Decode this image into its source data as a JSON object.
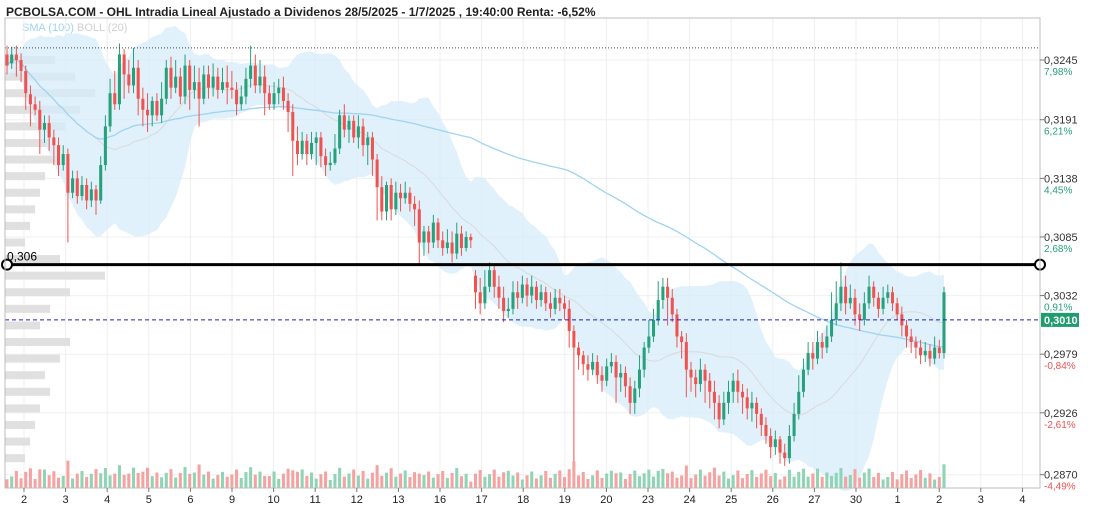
{
  "header": {
    "title": "PCBOLSA.COM - OHL Intradia Lineal Ajustado a Dividenos 28/5/2025 - 1/7/2025 , 19:40:00 Renta: -6,52%",
    "legend_sma": "SMA (100)",
    "legend_boll": "BOLL (20)"
  },
  "colors": {
    "up": "#26a17b",
    "down": "#ef5350",
    "sma": "#9fd3f2",
    "band_fill": "#d6ecfa",
    "mid_band": "#d9d9d9",
    "volume_profile": "#e0e0e0",
    "current_price": "#1c1ccc",
    "level_line": "#000000",
    "pct_pos": "#26a17b",
    "pct_neg": "#ef5350"
  },
  "chart_data": {
    "type": "candlestick",
    "y_range": [
      0.2858,
      0.3283
    ],
    "y_ticks": [
      {
        "value": 0.3245,
        "label": "0,3245",
        "pct": "7,98%",
        "sign": "pos"
      },
      {
        "value": 0.3191,
        "label": "0,3191",
        "pct": "6,21%",
        "sign": "pos"
      },
      {
        "value": 0.3138,
        "label": "0,3138",
        "pct": "4,45%",
        "sign": "pos"
      },
      {
        "value": 0.3085,
        "label": "0,3085",
        "pct": "2,68%",
        "sign": "pos"
      },
      {
        "value": 0.3032,
        "label": "0,3032",
        "pct": "0,91%",
        "sign": "pos"
      },
      {
        "value": 0.2979,
        "label": "0,2979",
        "pct": "-0,84%",
        "sign": "neg"
      },
      {
        "value": 0.2926,
        "label": "0,2926",
        "pct": "-2,61%",
        "sign": "neg"
      },
      {
        "value": 0.287,
        "label": "0,2870",
        "pct": "-4,49%",
        "sign": "neg"
      }
    ],
    "x_labels": [
      "2",
      "3",
      "4",
      "5",
      "6",
      "9",
      "10",
      "11",
      "12",
      "13",
      "16",
      "17",
      "18",
      "19",
      "20",
      "23",
      "24",
      "25",
      "26",
      "27",
      "30",
      "1",
      "2",
      "3",
      "4"
    ],
    "level_line": {
      "value": 0.306,
      "label": "0,306"
    },
    "current_price": {
      "value": 0.301,
      "label": "0,3010"
    },
    "dotted_level": 0.3256,
    "candles": [
      [
        0.325,
        0.324,
        0.3258,
        0.3232
      ],
      [
        0.3242,
        0.325,
        0.3257,
        0.3237
      ],
      [
        0.325,
        0.3245,
        0.3258,
        0.323
      ],
      [
        0.3245,
        0.3235,
        0.3251,
        0.3225
      ],
      [
        0.3235,
        0.3215,
        0.324,
        0.32
      ],
      [
        0.3214,
        0.3205,
        0.3222,
        0.3185
      ],
      [
        0.3205,
        0.32,
        0.3212,
        0.3195
      ],
      [
        0.32,
        0.3182,
        0.3208,
        0.316
      ],
      [
        0.3182,
        0.3188,
        0.3195,
        0.317
      ],
      [
        0.3188,
        0.3175,
        0.3195,
        0.3163
      ],
      [
        0.3175,
        0.3168,
        0.3182,
        0.315
      ],
      [
        0.3168,
        0.315,
        0.3175,
        0.314
      ],
      [
        0.315,
        0.316,
        0.3168,
        0.3145
      ],
      [
        0.316,
        0.3125,
        0.3165,
        0.308
      ],
      [
        0.3125,
        0.3138,
        0.3145,
        0.312
      ],
      [
        0.3138,
        0.3122,
        0.3145,
        0.3115
      ],
      [
        0.3122,
        0.3132,
        0.314,
        0.3118
      ],
      [
        0.3132,
        0.3118,
        0.3138,
        0.311
      ],
      [
        0.3118,
        0.3128,
        0.3135,
        0.3112
      ],
      [
        0.3128,
        0.3118,
        0.3132,
        0.3105
      ],
      [
        0.3118,
        0.315,
        0.3158,
        0.3115
      ],
      [
        0.315,
        0.3185,
        0.3195,
        0.3145
      ],
      [
        0.3185,
        0.3215,
        0.3228,
        0.318
      ],
      [
        0.3215,
        0.3205,
        0.3235,
        0.32
      ],
      [
        0.3205,
        0.325,
        0.326,
        0.32
      ],
      [
        0.325,
        0.3232,
        0.3255,
        0.321
      ],
      [
        0.3232,
        0.3222,
        0.3245,
        0.3215
      ],
      [
        0.3222,
        0.3238,
        0.3256,
        0.3215
      ],
      [
        0.3238,
        0.321,
        0.3245,
        0.3195
      ],
      [
        0.321,
        0.32,
        0.322,
        0.3185
      ],
      [
        0.32,
        0.3195,
        0.3215,
        0.318
      ],
      [
        0.3195,
        0.3208,
        0.3212,
        0.3185
      ],
      [
        0.3208,
        0.3195,
        0.3215,
        0.319
      ],
      [
        0.3195,
        0.321,
        0.3225,
        0.3188
      ],
      [
        0.321,
        0.3238,
        0.3245,
        0.3205
      ],
      [
        0.3238,
        0.322,
        0.3248,
        0.321
      ],
      [
        0.322,
        0.323,
        0.3245,
        0.3215
      ],
      [
        0.323,
        0.3212,
        0.3238,
        0.3205
      ],
      [
        0.3212,
        0.324,
        0.325,
        0.3205
      ],
      [
        0.324,
        0.3218,
        0.3245,
        0.32
      ],
      [
        0.3218,
        0.3225,
        0.324,
        0.321
      ],
      [
        0.3225,
        0.321,
        0.3238,
        0.3185
      ],
      [
        0.321,
        0.3232,
        0.324,
        0.3205
      ],
      [
        0.3232,
        0.322,
        0.324,
        0.321
      ],
      [
        0.322,
        0.323,
        0.3242,
        0.3212
      ],
      [
        0.323,
        0.3218,
        0.3238,
        0.321
      ],
      [
        0.3218,
        0.3225,
        0.3238,
        0.3215
      ],
      [
        0.3225,
        0.322,
        0.324,
        0.3205
      ],
      [
        0.322,
        0.3218,
        0.3235,
        0.321
      ],
      [
        0.3218,
        0.3205,
        0.3225,
        0.3195
      ],
      [
        0.3205,
        0.3212,
        0.3222,
        0.32
      ],
      [
        0.3212,
        0.3228,
        0.3238,
        0.3205
      ],
      [
        0.3228,
        0.324,
        0.3258,
        0.322
      ],
      [
        0.324,
        0.3222,
        0.325,
        0.3215
      ],
      [
        0.3222,
        0.323,
        0.3245,
        0.3215
      ],
      [
        0.323,
        0.3215,
        0.324,
        0.3195
      ],
      [
        0.3215,
        0.3205,
        0.3222,
        0.32
      ],
      [
        0.3205,
        0.3215,
        0.3225,
        0.32
      ],
      [
        0.3215,
        0.322,
        0.3228,
        0.3205
      ],
      [
        0.322,
        0.3208,
        0.323,
        0.32
      ],
      [
        0.3208,
        0.3198,
        0.3215,
        0.318
      ],
      [
        0.3198,
        0.3172,
        0.3205,
        0.314
      ],
      [
        0.3172,
        0.316,
        0.3185,
        0.315
      ],
      [
        0.316,
        0.3172,
        0.318,
        0.3155
      ],
      [
        0.3172,
        0.316,
        0.3178,
        0.315
      ],
      [
        0.316,
        0.317,
        0.318,
        0.3155
      ],
      [
        0.317,
        0.3175,
        0.318,
        0.315
      ],
      [
        0.3175,
        0.3158,
        0.318,
        0.3148
      ],
      [
        0.3158,
        0.315,
        0.3165,
        0.314
      ],
      [
        0.315,
        0.3152,
        0.3162,
        0.3145
      ],
      [
        0.3152,
        0.3165,
        0.3178,
        0.315
      ],
      [
        0.3165,
        0.3195,
        0.32,
        0.316
      ],
      [
        0.3195,
        0.3182,
        0.3205,
        0.3175
      ],
      [
        0.3182,
        0.319,
        0.3195,
        0.317
      ],
      [
        0.319,
        0.3175,
        0.3195,
        0.317
      ],
      [
        0.3175,
        0.3185,
        0.3195,
        0.3165
      ],
      [
        0.3185,
        0.3168,
        0.3192,
        0.3158
      ],
      [
        0.3168,
        0.3175,
        0.318,
        0.315
      ],
      [
        0.3175,
        0.3155,
        0.318,
        0.314
      ],
      [
        0.3155,
        0.313,
        0.316,
        0.31
      ],
      [
        0.313,
        0.3108,
        0.314,
        0.31
      ],
      [
        0.3108,
        0.3132,
        0.3135,
        0.31
      ],
      [
        0.3132,
        0.311,
        0.3138,
        0.31
      ],
      [
        0.311,
        0.3125,
        0.3135,
        0.3105
      ],
      [
        0.3125,
        0.312,
        0.3133,
        0.3108
      ],
      [
        0.312,
        0.3125,
        0.3135,
        0.3115
      ],
      [
        0.3125,
        0.3115,
        0.313,
        0.3108
      ],
      [
        0.3115,
        0.311,
        0.3122,
        0.3095
      ],
      [
        0.311,
        0.308,
        0.3118,
        0.306
      ],
      [
        0.308,
        0.309,
        0.3095,
        0.3068
      ],
      [
        0.309,
        0.308,
        0.3095,
        0.307
      ],
      [
        0.308,
        0.3098,
        0.3105,
        0.3075
      ],
      [
        0.3098,
        0.3082,
        0.3102,
        0.3075
      ],
      [
        0.3082,
        0.3075,
        0.309,
        0.3068
      ],
      [
        0.3075,
        0.308,
        0.3092,
        0.307
      ],
      [
        0.308,
        0.307,
        0.309,
        0.3062
      ],
      [
        0.307,
        0.3088,
        0.3098,
        0.3065
      ],
      [
        0.3088,
        0.3075,
        0.3095,
        0.3068
      ],
      [
        0.3075,
        0.3085,
        0.309,
        0.3072
      ],
      [
        0.3085,
        0.3082,
        0.3088,
        0.3075
      ],
      [
        0.305,
        0.3035,
        0.3055,
        0.302
      ],
      [
        0.3035,
        0.3025,
        0.3048,
        0.3015
      ],
      [
        0.3025,
        0.304,
        0.3055,
        0.302
      ],
      [
        0.304,
        0.3055,
        0.3062,
        0.3035
      ],
      [
        0.3055,
        0.304,
        0.306,
        0.303
      ],
      [
        0.304,
        0.303,
        0.305,
        0.302
      ],
      [
        0.303,
        0.3018,
        0.304,
        0.3008
      ],
      [
        0.3018,
        0.302,
        0.303,
        0.3012
      ],
      [
        0.302,
        0.3035,
        0.3045,
        0.3015
      ],
      [
        0.3035,
        0.303,
        0.3045,
        0.302
      ],
      [
        0.303,
        0.3042,
        0.305,
        0.3025
      ],
      [
        0.3042,
        0.3032,
        0.3048,
        0.3022
      ],
      [
        0.3032,
        0.304,
        0.305,
        0.3025
      ],
      [
        0.304,
        0.3028,
        0.3045,
        0.302
      ],
      [
        0.3028,
        0.3035,
        0.3042,
        0.3022
      ],
      [
        0.3035,
        0.3025,
        0.304,
        0.3018
      ],
      [
        0.3025,
        0.302,
        0.3035,
        0.3012
      ],
      [
        0.302,
        0.303,
        0.3038,
        0.3015
      ],
      [
        0.303,
        0.3025,
        0.3038,
        0.3018
      ],
      [
        0.3025,
        0.302,
        0.3032,
        0.301
      ],
      [
        0.302,
        0.3,
        0.3028,
        0.2985
      ],
      [
        0.3,
        0.2985,
        0.3005,
        0.288
      ],
      [
        0.2985,
        0.2978,
        0.299,
        0.2965
      ],
      [
        0.2978,
        0.297,
        0.2982,
        0.296
      ],
      [
        0.297,
        0.2965,
        0.2978,
        0.2955
      ],
      [
        0.2965,
        0.2972,
        0.298,
        0.296
      ],
      [
        0.2972,
        0.296,
        0.2978,
        0.2952
      ],
      [
        0.296,
        0.2955,
        0.2968,
        0.2945
      ],
      [
        0.2955,
        0.2968,
        0.2975,
        0.295
      ],
      [
        0.2968,
        0.2972,
        0.298,
        0.2962
      ],
      [
        0.2972,
        0.2958,
        0.2978,
        0.2935
      ],
      [
        0.2958,
        0.2962,
        0.297,
        0.2945
      ],
      [
        0.2962,
        0.295,
        0.2968,
        0.294
      ],
      [
        0.295,
        0.2935,
        0.2958,
        0.2925
      ],
      [
        0.2935,
        0.2948,
        0.2955,
        0.2925
      ],
      [
        0.2948,
        0.2965,
        0.2978,
        0.294
      ],
      [
        0.2965,
        0.2985,
        0.299,
        0.2958
      ],
      [
        0.2985,
        0.2995,
        0.301,
        0.298
      ],
      [
        0.2995,
        0.301,
        0.302,
        0.299
      ],
      [
        0.301,
        0.3028,
        0.3045,
        0.3005
      ],
      [
        0.3028,
        0.304,
        0.3048,
        0.302
      ],
      [
        0.304,
        0.303,
        0.3048,
        0.3005
      ],
      [
        0.303,
        0.3015,
        0.3038,
        0.3008
      ],
      [
        0.3015,
        0.2995,
        0.302,
        0.2985
      ],
      [
        0.2995,
        0.299,
        0.3,
        0.2975
      ],
      [
        0.299,
        0.2965,
        0.2998,
        0.294
      ],
      [
        0.2965,
        0.2958,
        0.2972,
        0.2945
      ],
      [
        0.2958,
        0.2952,
        0.2965,
        0.294
      ],
      [
        0.2952,
        0.2965,
        0.2975,
        0.2945
      ],
      [
        0.2965,
        0.2955,
        0.297,
        0.2935
      ],
      [
        0.2955,
        0.2945,
        0.2962,
        0.293
      ],
      [
        0.2945,
        0.2935,
        0.2955,
        0.292
      ],
      [
        0.2935,
        0.292,
        0.2942,
        0.2912
      ],
      [
        0.292,
        0.2935,
        0.2945,
        0.2915
      ],
      [
        0.2935,
        0.2945,
        0.2955,
        0.2925
      ],
      [
        0.2945,
        0.2955,
        0.2962,
        0.2935
      ],
      [
        0.2955,
        0.2945,
        0.2965,
        0.2935
      ],
      [
        0.2945,
        0.294,
        0.2952,
        0.2925
      ],
      [
        0.294,
        0.293,
        0.2948,
        0.292
      ],
      [
        0.293,
        0.2935,
        0.2945,
        0.2918
      ],
      [
        0.2935,
        0.2925,
        0.294,
        0.2912
      ],
      [
        0.2925,
        0.2915,
        0.293,
        0.2905
      ],
      [
        0.2915,
        0.2905,
        0.2922,
        0.2898
      ],
      [
        0.2905,
        0.2895,
        0.2912,
        0.2885
      ],
      [
        0.2895,
        0.2902,
        0.291,
        0.2888
      ],
      [
        0.2902,
        0.289,
        0.2905,
        0.288
      ],
      [
        0.289,
        0.2885,
        0.2898,
        0.2878
      ],
      [
        0.2885,
        0.2905,
        0.2915,
        0.288
      ],
      [
        0.2905,
        0.2925,
        0.2935,
        0.29
      ],
      [
        0.2925,
        0.2945,
        0.296,
        0.292
      ],
      [
        0.2945,
        0.2965,
        0.2975,
        0.294
      ],
      [
        0.2965,
        0.298,
        0.299,
        0.296
      ],
      [
        0.298,
        0.2975,
        0.299,
        0.2965
      ],
      [
        0.2975,
        0.299,
        0.3,
        0.297
      ],
      [
        0.299,
        0.2985,
        0.2998,
        0.2975
      ],
      [
        0.2985,
        0.2995,
        0.3005,
        0.298
      ],
      [
        0.2995,
        0.301,
        0.3035,
        0.299
      ],
      [
        0.301,
        0.3025,
        0.3045,
        0.3005
      ],
      [
        0.3025,
        0.304,
        0.3062,
        0.3018
      ],
      [
        0.304,
        0.3025,
        0.305,
        0.3015
      ],
      [
        0.3025,
        0.303,
        0.3042,
        0.302
      ],
      [
        0.303,
        0.3015,
        0.3038,
        0.3005
      ],
      [
        0.3015,
        0.301,
        0.3025,
        0.3
      ],
      [
        0.301,
        0.3025,
        0.3035,
        0.3005
      ],
      [
        0.3025,
        0.304,
        0.305,
        0.302
      ],
      [
        0.304,
        0.303,
        0.3045,
        0.3022
      ],
      [
        0.303,
        0.302,
        0.3035,
        0.3012
      ],
      [
        0.302,
        0.303,
        0.304,
        0.3015
      ],
      [
        0.303,
        0.3035,
        0.3042,
        0.3025
      ],
      [
        0.3035,
        0.3025,
        0.304,
        0.3018
      ],
      [
        0.3025,
        0.3015,
        0.303,
        0.301
      ],
      [
        0.3015,
        0.3005,
        0.3022,
        0.2995
      ],
      [
        0.3005,
        0.2995,
        0.301,
        0.2985
      ],
      [
        0.2995,
        0.299,
        0.3002,
        0.298
      ],
      [
        0.299,
        0.2985,
        0.2995,
        0.2975
      ],
      [
        0.2985,
        0.2978,
        0.2992,
        0.297
      ],
      [
        0.2978,
        0.2982,
        0.299,
        0.2972
      ],
      [
        0.2982,
        0.2975,
        0.2988,
        0.2968
      ],
      [
        0.2975,
        0.2985,
        0.2995,
        0.297
      ],
      [
        0.2985,
        0.298,
        0.2992,
        0.2975
      ],
      [
        0.298,
        0.3035,
        0.304,
        0.2975
      ]
    ],
    "volume_profile": [
      [
        0.3245,
        0.5
      ],
      [
        0.323,
        0.7
      ],
      [
        0.3215,
        0.9
      ],
      [
        0.32,
        0.75
      ],
      [
        0.3185,
        0.6
      ],
      [
        0.317,
        0.45
      ],
      [
        0.3155,
        0.55
      ],
      [
        0.314,
        0.4
      ],
      [
        0.3125,
        0.35
      ],
      [
        0.311,
        0.3
      ],
      [
        0.3095,
        0.25
      ],
      [
        0.308,
        0.2
      ],
      [
        0.3065,
        0.55
      ],
      [
        0.305,
        1.0
      ],
      [
        0.3035,
        0.65
      ],
      [
        0.302,
        0.45
      ],
      [
        0.3005,
        0.35
      ],
      [
        0.299,
        0.65
      ],
      [
        0.2975,
        0.55
      ],
      [
        0.296,
        0.4
      ],
      [
        0.2945,
        0.45
      ],
      [
        0.293,
        0.35
      ],
      [
        0.2915,
        0.3
      ],
      [
        0.29,
        0.25
      ],
      [
        0.2885,
        0.2
      ]
    ]
  }
}
